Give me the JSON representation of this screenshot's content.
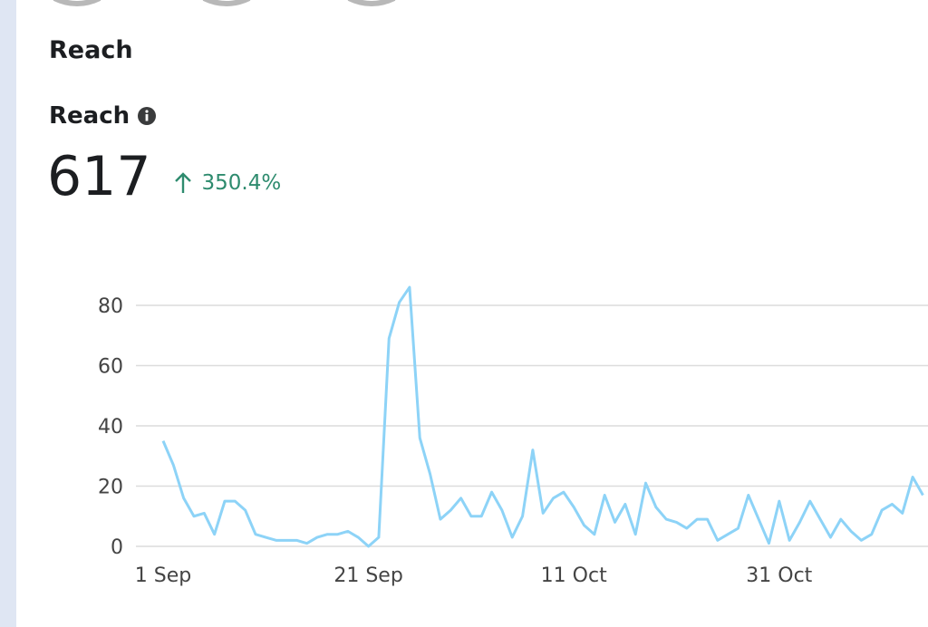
{
  "header": {
    "section_title": "Reach",
    "metric_label": "Reach",
    "metric_value": "617",
    "change": "350.4%"
  },
  "chart_data": {
    "type": "line",
    "color": "#8dd3f7",
    "categories": [
      "1 Sep",
      null,
      null,
      null,
      null,
      null,
      null,
      null,
      null,
      null,
      null,
      null,
      null,
      null,
      null,
      null,
      null,
      null,
      null,
      null,
      "21 Sep",
      null,
      null,
      null,
      null,
      null,
      null,
      null,
      null,
      null,
      null,
      null,
      null,
      null,
      null,
      null,
      null,
      null,
      null,
      null,
      "11 Oct",
      null,
      null,
      null,
      null,
      null,
      null,
      null,
      null,
      null,
      null,
      null,
      null,
      null,
      null,
      null,
      null,
      null,
      null,
      null,
      "31 Oct",
      null,
      null,
      null,
      null,
      null,
      null,
      null,
      null,
      null,
      null,
      null,
      null,
      null,
      null
    ],
    "values": [
      35,
      27,
      16,
      10,
      11,
      4,
      15,
      15,
      12,
      4,
      3,
      2,
      2,
      2,
      1,
      3,
      4,
      4,
      5,
      3,
      0,
      3,
      69,
      81,
      86,
      36,
      24,
      9,
      12,
      16,
      10,
      10,
      18,
      12,
      3,
      10,
      32,
      11,
      16,
      18,
      13,
      7,
      4,
      17,
      8,
      14,
      4,
      21,
      13,
      9,
      8,
      6,
      9,
      9,
      2,
      4,
      6,
      17,
      9,
      1,
      15,
      2,
      8,
      15,
      9,
      3,
      9,
      5,
      2,
      4,
      12,
      14,
      11,
      23,
      17
    ],
    "ylim": [
      0,
      90
    ],
    "yticks": [
      0,
      20,
      40,
      60,
      80
    ],
    "grid": true
  }
}
